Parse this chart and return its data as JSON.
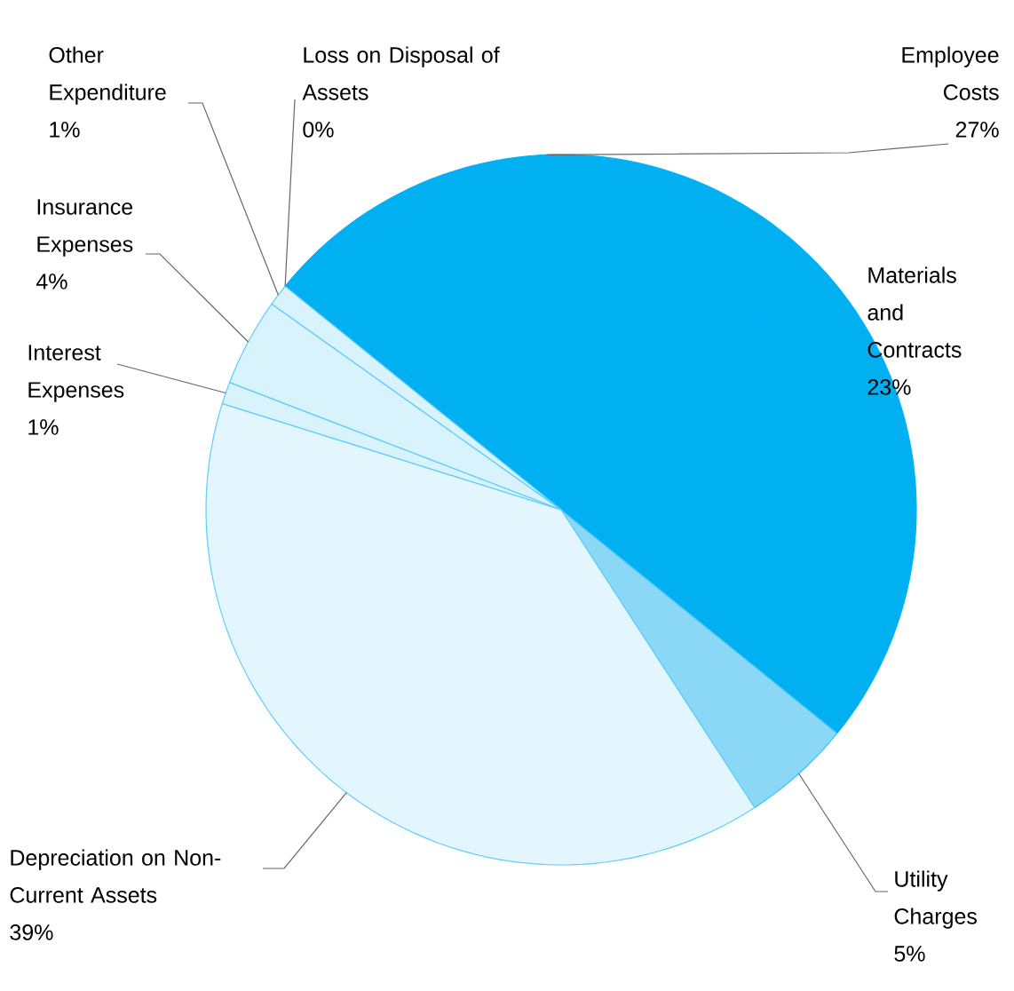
{
  "chart_data": {
    "type": "pie",
    "categories": [
      "Employee Costs",
      "Materials and Contracts",
      "Utility Charges",
      "Depreciation on Non-Current Assets",
      "Interest Expenses",
      "Insurance Expenses",
      "Other Expenditure",
      "Loss on Disposal of Assets"
    ],
    "values": [
      27,
      23,
      5,
      39,
      1,
      4,
      1,
      0
    ],
    "value_labels": [
      "27%",
      "23%",
      "5%",
      "39%",
      "1%",
      "4%",
      "1%",
      "0%"
    ],
    "colors": [
      "#00b0f0",
      "#00b0f0",
      "#8ad8f6",
      "#e3f6fd",
      "#d9f3fc",
      "#d9f3fc",
      "#d9f3fc",
      "#00b0f0"
    ]
  }
}
